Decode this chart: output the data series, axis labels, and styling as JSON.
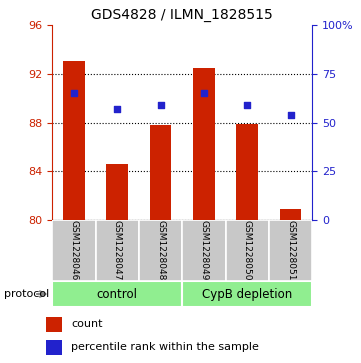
{
  "title": "GDS4828 / ILMN_1828515",
  "samples": [
    "GSM1228046",
    "GSM1228047",
    "GSM1228048",
    "GSM1228049",
    "GSM1228050",
    "GSM1228051"
  ],
  "counts": [
    93.1,
    84.6,
    87.8,
    92.5,
    87.9,
    80.9
  ],
  "percentile_ranks": [
    65,
    57,
    59,
    65,
    59,
    54
  ],
  "ylim_left": [
    80,
    96
  ],
  "ylim_right": [
    0,
    100
  ],
  "yticks_left": [
    80,
    84,
    88,
    92,
    96
  ],
  "yticks_right": [
    0,
    25,
    50,
    75,
    100
  ],
  "ytick_labels_right": [
    "0",
    "25",
    "50",
    "75",
    "100%"
  ],
  "groups": [
    {
      "label": "control",
      "start": 0,
      "end": 2
    },
    {
      "label": "CypB depletion",
      "start": 3,
      "end": 5
    }
  ],
  "group_color": "#90EE90",
  "bar_color": "#CC2200",
  "dot_color": "#2222CC",
  "bar_width": 0.5,
  "grid_color": "#000000",
  "background_label": "#C8C8C8",
  "label_color_left": "#CC2200",
  "label_color_right": "#2222CC",
  "protocol_label": "protocol",
  "legend_count": "count",
  "legend_percentile": "percentile rank within the sample"
}
